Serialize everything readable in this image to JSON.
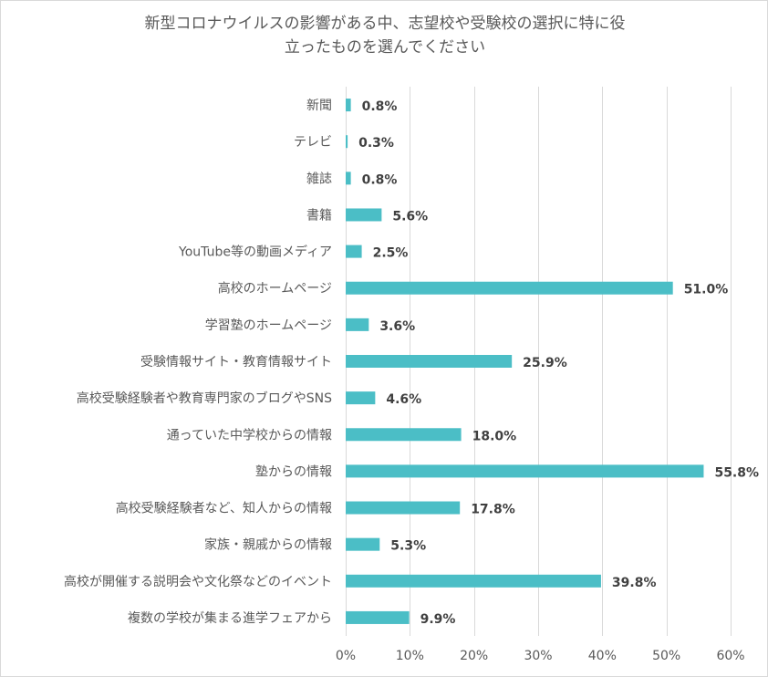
{
  "chart_data": {
    "type": "bar",
    "orientation": "horizontal",
    "title_lines": [
      "新型コロナウイルスの影響がある中、志望校や受験校の選択に特に役",
      "立ったものを選んでください"
    ],
    "categories": [
      "新聞",
      "テレビ",
      "雑誌",
      "書籍",
      "YouTube等の動画メディア",
      "高校のホームページ",
      "学習塾のホームページ",
      "受験情報サイト・教育情報サイト",
      "高校受験経験者や教育専門家のブログやSNS",
      "通っていた中学校からの情報",
      "塾からの情報",
      "高校受験経験者など、知人からの情報",
      "家族・親戚からの情報",
      "高校が開催する説明会や文化祭などのイベント",
      "複数の学校が集まる進学フェアから"
    ],
    "values": [
      0.8,
      0.3,
      0.8,
      5.6,
      2.5,
      51.0,
      3.6,
      25.9,
      4.6,
      18.0,
      55.8,
      17.8,
      5.3,
      39.8,
      9.9
    ],
    "value_labels": [
      "0.8%",
      "0.3%",
      "0.8%",
      "5.6%",
      "2.5%",
      "51.0%",
      "3.6%",
      "25.9%",
      "4.6%",
      "18.0%",
      "55.8%",
      "17.8%",
      "5.3%",
      "39.8%",
      "9.9%"
    ],
    "x_ticks": [
      0,
      10,
      20,
      30,
      40,
      50,
      60
    ],
    "x_tick_labels": [
      "0%",
      "10%",
      "20%",
      "30%",
      "40%",
      "50%",
      "60%"
    ],
    "xlim": [
      0,
      60
    ],
    "grid": true,
    "legend": "none",
    "bar_color": "#4bbec6",
    "grid_color": "#d9d9d9",
    "text_color": "#595959",
    "label_color": "#404040"
  }
}
